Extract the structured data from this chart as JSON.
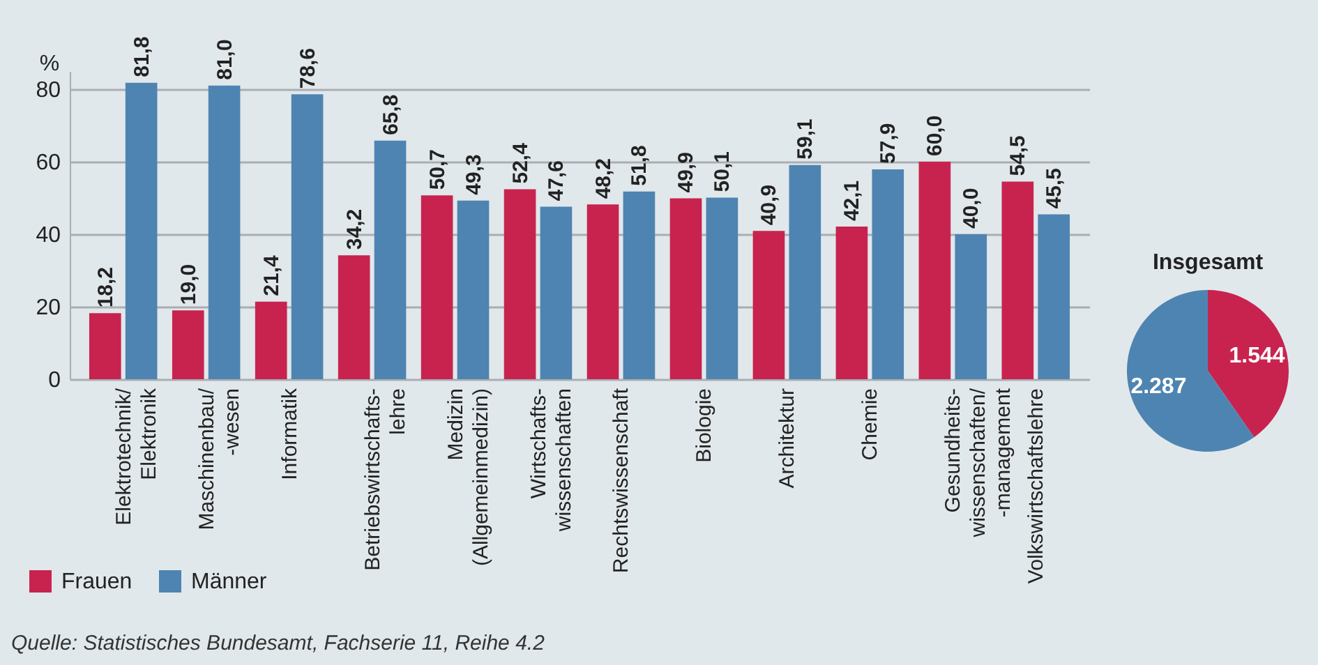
{
  "chart_data": [
    {
      "type": "bar",
      "categories": [
        "Elektrotechnik/\nElektronik",
        "Maschinenbau/\n-wesen",
        "Informatik",
        "Betriebswirtschafts-\nlehre",
        "Medizin\n(Allgemeinmedizin)",
        "Wirtschafts-\nwissenschaften",
        "Rechtswissenschaft",
        "Biologie",
        "Architektur",
        "Chemie",
        "Gesundheits-\nwissenschaften/\n-management",
        "Volkswirtschaftslehre"
      ],
      "ylabel": "%",
      "ylim": [
        0,
        85
      ],
      "yticks": [
        0,
        20,
        40,
        60,
        80
      ],
      "grid": "y",
      "legend": "bottom left",
      "series": [
        {
          "name": "Frauen",
          "color": "#c8234f",
          "values": [
            18.2,
            19.0,
            21.4,
            34.2,
            50.7,
            52.4,
            48.2,
            49.9,
            40.9,
            42.1,
            60.0,
            54.5
          ],
          "value_labels": [
            "18,2",
            "19,0",
            "21,4",
            "34,2",
            "50,7",
            "52,4",
            "48,2",
            "49,9",
            "40,9",
            "42,1",
            "60,0",
            "54,5"
          ]
        },
        {
          "name": "Männer",
          "color": "#4e84b1",
          "values": [
            81.8,
            81.0,
            78.6,
            65.8,
            49.3,
            47.6,
            51.8,
            50.1,
            59.1,
            57.9,
            40.0,
            45.5
          ],
          "value_labels": [
            "81,8",
            "81,0",
            "78,6",
            "65,8",
            "49,3",
            "47,6",
            "51,8",
            "50,1",
            "59,1",
            "57,9",
            "40,0",
            "45,5"
          ]
        }
      ],
      "annotations": [
        "Quelle: Statistisches Bundesamt, Fachserie 11, Reihe 4.2"
      ]
    },
    {
      "type": "pie",
      "title": "Insgesamt",
      "categories": [
        null,
        null
      ],
      "values": [
        1544,
        2287
      ],
      "colors": [
        "#c8234f",
        "#4e84b1"
      ],
      "value_labels": [
        "1.544",
        "2.287"
      ]
    }
  ]
}
